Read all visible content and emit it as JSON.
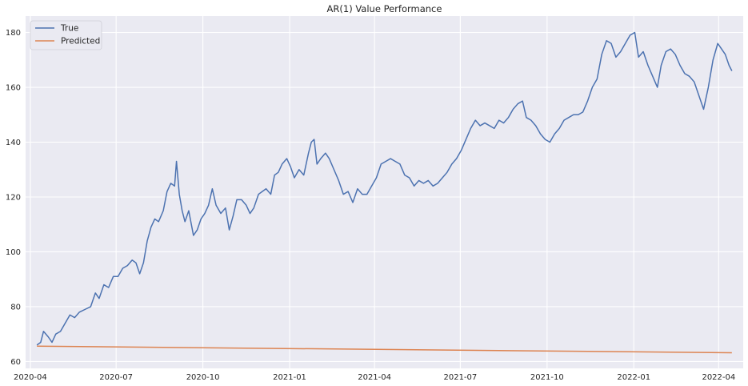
{
  "chart_data": {
    "type": "line",
    "title": "AR(1) Value Performance",
    "xlabel": "",
    "ylabel": "",
    "x_axis_type": "date",
    "xlim": [
      "2020-03-27",
      "2022-04-27"
    ],
    "ylim": [
      57.5,
      186
    ],
    "x_ticks": [
      "2020-04",
      "2020-07",
      "2020-10",
      "2021-01",
      "2021-04",
      "2021-07",
      "2021-10",
      "2022-01",
      "2022-04"
    ],
    "y_ticks": [
      60,
      80,
      100,
      120,
      140,
      160,
      180
    ],
    "grid": true,
    "legend_position": "top-left",
    "series": [
      {
        "name": "True",
        "color": "#4c72b0",
        "points": [
          [
            "2020-04-08",
            66
          ],
          [
            "2020-04-12",
            67
          ],
          [
            "2020-04-15",
            71
          ],
          [
            "2020-04-20",
            69
          ],
          [
            "2020-04-24",
            67
          ],
          [
            "2020-04-28",
            70
          ],
          [
            "2020-05-03",
            71
          ],
          [
            "2020-05-08",
            74
          ],
          [
            "2020-05-13",
            77
          ],
          [
            "2020-05-18",
            76
          ],
          [
            "2020-05-23",
            78
          ],
          [
            "2020-05-29",
            79
          ],
          [
            "2020-06-04",
            80
          ],
          [
            "2020-06-09",
            85
          ],
          [
            "2020-06-13",
            83
          ],
          [
            "2020-06-18",
            88
          ],
          [
            "2020-06-23",
            87
          ],
          [
            "2020-06-28",
            91
          ],
          [
            "2020-07-03",
            91
          ],
          [
            "2020-07-08",
            94
          ],
          [
            "2020-07-13",
            95
          ],
          [
            "2020-07-18",
            97
          ],
          [
            "2020-07-22",
            96
          ],
          [
            "2020-07-26",
            92
          ],
          [
            "2020-07-30",
            96
          ],
          [
            "2020-08-03",
            104
          ],
          [
            "2020-08-07",
            109
          ],
          [
            "2020-08-11",
            112
          ],
          [
            "2020-08-15",
            111
          ],
          [
            "2020-08-20",
            115
          ],
          [
            "2020-08-24",
            122
          ],
          [
            "2020-08-28",
            125
          ],
          [
            "2020-09-01",
            124
          ],
          [
            "2020-09-03",
            133
          ],
          [
            "2020-09-06",
            121
          ],
          [
            "2020-09-09",
            115
          ],
          [
            "2020-09-12",
            111
          ],
          [
            "2020-09-16",
            115
          ],
          [
            "2020-09-21",
            106
          ],
          [
            "2020-09-25",
            108
          ],
          [
            "2020-09-29",
            112
          ],
          [
            "2020-10-03",
            114
          ],
          [
            "2020-10-07",
            117
          ],
          [
            "2020-10-11",
            123
          ],
          [
            "2020-10-15",
            117
          ],
          [
            "2020-10-20",
            114
          ],
          [
            "2020-10-25",
            116
          ],
          [
            "2020-10-29",
            108
          ],
          [
            "2020-11-02",
            113
          ],
          [
            "2020-11-06",
            119
          ],
          [
            "2020-11-11",
            119
          ],
          [
            "2020-11-16",
            117
          ],
          [
            "2020-11-20",
            114
          ],
          [
            "2020-11-24",
            116
          ],
          [
            "2020-11-29",
            121
          ],
          [
            "2020-12-03",
            122
          ],
          [
            "2020-12-07",
            123
          ],
          [
            "2020-12-12",
            121
          ],
          [
            "2020-12-16",
            128
          ],
          [
            "2020-12-20",
            129
          ],
          [
            "2020-12-24",
            132
          ],
          [
            "2020-12-29",
            134
          ],
          [
            "2021-01-02",
            131
          ],
          [
            "2021-01-06",
            127
          ],
          [
            "2021-01-11",
            130
          ],
          [
            "2021-01-16",
            128
          ],
          [
            "2021-01-21",
            136
          ],
          [
            "2021-01-24",
            140
          ],
          [
            "2021-01-27",
            141
          ],
          [
            "2021-01-30",
            132
          ],
          [
            "2021-02-03",
            134
          ],
          [
            "2021-02-08",
            136
          ],
          [
            "2021-02-12",
            134
          ],
          [
            "2021-02-17",
            130
          ],
          [
            "2021-02-22",
            126
          ],
          [
            "2021-02-27",
            121
          ],
          [
            "2021-03-04",
            122
          ],
          [
            "2021-03-09",
            118
          ],
          [
            "2021-03-14",
            123
          ],
          [
            "2021-03-19",
            121
          ],
          [
            "2021-03-24",
            121
          ],
          [
            "2021-03-29",
            124
          ],
          [
            "2021-04-03",
            127
          ],
          [
            "2021-04-08",
            132
          ],
          [
            "2021-04-13",
            133
          ],
          [
            "2021-04-18",
            134
          ],
          [
            "2021-04-23",
            133
          ],
          [
            "2021-04-28",
            132
          ],
          [
            "2021-05-03",
            128
          ],
          [
            "2021-05-08",
            127
          ],
          [
            "2021-05-13",
            124
          ],
          [
            "2021-05-18",
            126
          ],
          [
            "2021-05-23",
            125
          ],
          [
            "2021-05-28",
            126
          ],
          [
            "2021-06-02",
            124
          ],
          [
            "2021-06-07",
            125
          ],
          [
            "2021-06-12",
            127
          ],
          [
            "2021-06-17",
            129
          ],
          [
            "2021-06-22",
            132
          ],
          [
            "2021-06-27",
            134
          ],
          [
            "2021-07-02",
            137
          ],
          [
            "2021-07-07",
            141
          ],
          [
            "2021-07-12",
            145
          ],
          [
            "2021-07-17",
            148
          ],
          [
            "2021-07-22",
            146
          ],
          [
            "2021-07-27",
            147
          ],
          [
            "2021-08-01",
            146
          ],
          [
            "2021-08-06",
            145
          ],
          [
            "2021-08-11",
            148
          ],
          [
            "2021-08-16",
            147
          ],
          [
            "2021-08-21",
            149
          ],
          [
            "2021-08-26",
            152
          ],
          [
            "2021-08-31",
            154
          ],
          [
            "2021-09-05",
            155
          ],
          [
            "2021-09-09",
            149
          ],
          [
            "2021-09-14",
            148
          ],
          [
            "2021-09-19",
            146
          ],
          [
            "2021-09-24",
            143
          ],
          [
            "2021-09-29",
            141
          ],
          [
            "2021-10-04",
            140
          ],
          [
            "2021-10-09",
            143
          ],
          [
            "2021-10-14",
            145
          ],
          [
            "2021-10-19",
            148
          ],
          [
            "2021-10-24",
            149
          ],
          [
            "2021-10-29",
            150
          ],
          [
            "2021-11-03",
            150
          ],
          [
            "2021-11-08",
            151
          ],
          [
            "2021-11-13",
            155
          ],
          [
            "2021-11-18",
            160
          ],
          [
            "2021-11-23",
            163
          ],
          [
            "2021-11-28",
            172
          ],
          [
            "2021-12-03",
            177
          ],
          [
            "2021-12-08",
            176
          ],
          [
            "2021-12-13",
            171
          ],
          [
            "2021-12-18",
            173
          ],
          [
            "2021-12-23",
            176
          ],
          [
            "2021-12-28",
            179
          ],
          [
            "2022-01-02",
            180
          ],
          [
            "2022-01-06",
            171
          ],
          [
            "2022-01-11",
            173
          ],
          [
            "2022-01-16",
            168
          ],
          [
            "2022-01-21",
            164
          ],
          [
            "2022-01-26",
            160
          ],
          [
            "2022-01-30",
            168
          ],
          [
            "2022-02-04",
            173
          ],
          [
            "2022-02-09",
            174
          ],
          [
            "2022-02-14",
            172
          ],
          [
            "2022-02-19",
            168
          ],
          [
            "2022-02-24",
            165
          ],
          [
            "2022-03-01",
            164
          ],
          [
            "2022-03-06",
            162
          ],
          [
            "2022-03-11",
            157
          ],
          [
            "2022-03-16",
            152
          ],
          [
            "2022-03-21",
            160
          ],
          [
            "2022-03-26",
            170
          ],
          [
            "2022-03-31",
            176
          ],
          [
            "2022-04-04",
            174
          ],
          [
            "2022-04-08",
            172
          ],
          [
            "2022-04-12",
            168
          ],
          [
            "2022-04-15",
            166
          ]
        ]
      },
      {
        "name": "Predicted",
        "color": "#dd8452",
        "points": [
          [
            "2020-04-08",
            65.6
          ],
          [
            "2022-04-15",
            63.2
          ]
        ]
      }
    ]
  }
}
